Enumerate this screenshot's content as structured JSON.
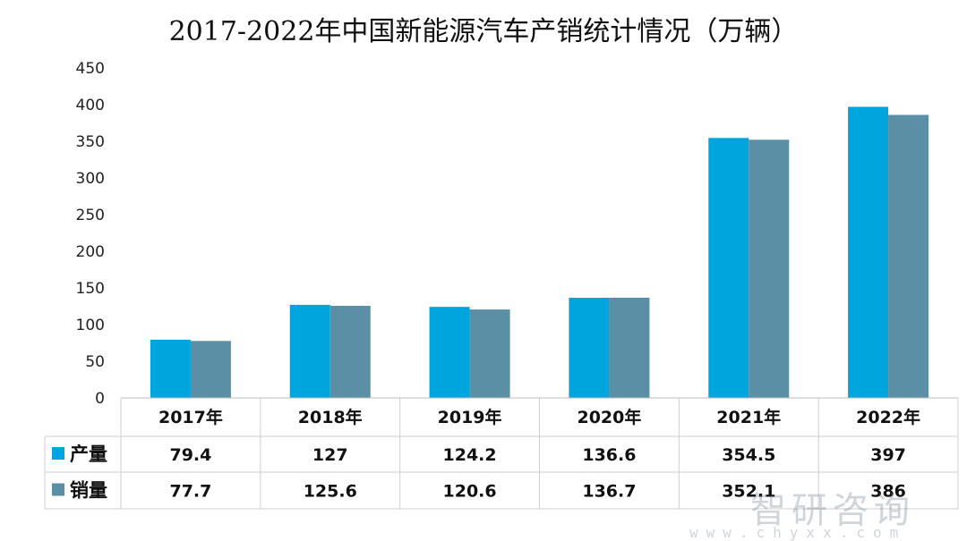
{
  "chart_data": {
    "type": "bar",
    "title": "2017-2022年中国新能源汽车产销统计情况（万辆）",
    "categories": [
      "2017年",
      "2018年",
      "2019年",
      "2020年",
      "2021年",
      "2022年"
    ],
    "series": [
      {
        "name": "产量",
        "values": [
          79.4,
          127,
          124.2,
          136.6,
          354.5,
          397
        ],
        "color": "#00a5de"
      },
      {
        "name": "销量",
        "values": [
          77.7,
          125.6,
          120.6,
          136.7,
          352.1,
          386
        ],
        "color": "#5b8fa6"
      }
    ],
    "ylim": [
      0,
      450
    ],
    "yticks": [
      0,
      50,
      100,
      150,
      200,
      250,
      300,
      350,
      400,
      450
    ],
    "table_values": {
      "产量": [
        "79.4",
        "127",
        "124.2",
        "136.6",
        "354.5",
        "397"
      ],
      "销量": [
        "77.7",
        "125.6",
        "120.6",
        "136.7",
        "352.1",
        "386"
      ]
    },
    "grid": false,
    "legend": "data-table"
  },
  "watermark": {
    "text": "智研咨询",
    "url": "www.chyxx.com"
  }
}
